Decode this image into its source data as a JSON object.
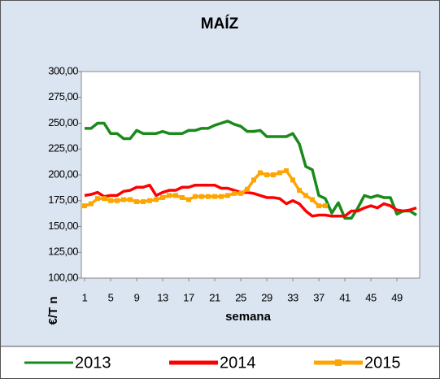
{
  "chart_data": {
    "type": "line",
    "title": "MAÍZ",
    "ylabel": "€/T n",
    "xlabel": "semana",
    "x": [
      1,
      2,
      3,
      4,
      5,
      6,
      7,
      8,
      9,
      10,
      11,
      12,
      13,
      14,
      15,
      16,
      17,
      18,
      19,
      20,
      21,
      22,
      23,
      24,
      25,
      26,
      27,
      28,
      29,
      30,
      31,
      32,
      33,
      34,
      35,
      36,
      37,
      38,
      39,
      40,
      41,
      42,
      43,
      44,
      45,
      46,
      47,
      48,
      49,
      50,
      51,
      52
    ],
    "xlim": [
      0.5,
      52.5
    ],
    "xticks": [
      1,
      5,
      9,
      13,
      17,
      21,
      25,
      29,
      33,
      37,
      41,
      45,
      49
    ],
    "ylim": [
      100,
      300
    ],
    "yticks": [
      {
        "value": 100,
        "label": "100,00"
      },
      {
        "value": 125,
        "label": "125,00"
      },
      {
        "value": 150,
        "label": "150,00"
      },
      {
        "value": 175,
        "label": "175,00"
      },
      {
        "value": 200,
        "label": "200,00"
      },
      {
        "value": 225,
        "label": "225,00"
      },
      {
        "value": 250,
        "label": "250,00"
      },
      {
        "value": 275,
        "label": "275,00"
      },
      {
        "value": 300,
        "label": "300,00"
      }
    ],
    "series": [
      {
        "name": "2013",
        "color": "#1a8a1a",
        "values": [
          245,
          245,
          250,
          250,
          240,
          240,
          235,
          235,
          243,
          240,
          240,
          240,
          242,
          240,
          240,
          240,
          243,
          243,
          245,
          245,
          248,
          250,
          252,
          249,
          247,
          242,
          242,
          243,
          237,
          237,
          237,
          237,
          240,
          230,
          208,
          205,
          180,
          177,
          163,
          173,
          158,
          158,
          168,
          180,
          178,
          180,
          178,
          178,
          162,
          165,
          165,
          161
        ]
      },
      {
        "name": "2014",
        "color": "#ff0000",
        "values": [
          180,
          181,
          183,
          179,
          180,
          180,
          184,
          185,
          188,
          188,
          190,
          180,
          183,
          185,
          185,
          188,
          188,
          190,
          190,
          190,
          190,
          187,
          187,
          185,
          183,
          183,
          182,
          180,
          178,
          178,
          177,
          172,
          175,
          172,
          165,
          160,
          161,
          161,
          160,
          160,
          160,
          165,
          165,
          168,
          170,
          168,
          172,
          170,
          166,
          165,
          166,
          168
        ]
      },
      {
        "name": "2015",
        "color": "#ffa500",
        "marker": "square",
        "values": [
          170,
          172,
          177,
          177,
          175,
          175,
          176,
          176,
          174,
          174,
          175,
          176,
          178,
          180,
          180,
          178,
          176,
          179,
          179,
          179,
          179,
          179,
          180,
          182,
          182,
          186,
          195,
          202,
          200,
          200,
          202,
          204,
          195,
          185,
          180,
          176,
          170,
          170,
          null,
          null,
          null,
          null,
          null,
          null,
          null,
          null,
          null,
          null,
          null,
          null,
          null,
          null
        ]
      }
    ]
  }
}
